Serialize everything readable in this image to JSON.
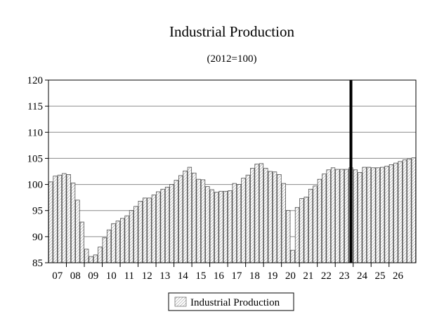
{
  "chart_data": {
    "type": "bar",
    "title": "Industrial Production",
    "subtitle": "(2012=100)",
    "xlabel": "",
    "ylabel": "",
    "ylim": [
      85,
      120
    ],
    "yticks": [
      85,
      90,
      95,
      100,
      105,
      110,
      115,
      120
    ],
    "grid": true,
    "legend_position": "bottom-center",
    "forecast_divider_year": "24",
    "x_labels": [
      "07",
      "08",
      "09",
      "10",
      "11",
      "12",
      "13",
      "14",
      "15",
      "16",
      "17",
      "18",
      "19",
      "20",
      "21",
      "22",
      "23",
      "24",
      "25",
      "26"
    ],
    "series": [
      {
        "name": "Industrial Production",
        "values": [
          100.5,
          101.6,
          101.8,
          102.1,
          101.9,
          100.3,
          97.0,
          92.8,
          87.6,
          86.2,
          86.5,
          88.0,
          89.8,
          91.3,
          92.5,
          93.0,
          93.5,
          94.0,
          95.0,
          95.8,
          96.8,
          97.4,
          97.4,
          98.0,
          98.6,
          99.1,
          99.5,
          100.0,
          100.8,
          101.7,
          102.6,
          103.3,
          102.2,
          101.0,
          100.9,
          99.6,
          99.0,
          98.5,
          98.7,
          98.7,
          98.8,
          100.2,
          100.0,
          101.2,
          101.8,
          103.1,
          103.9,
          104.0,
          103.1,
          102.5,
          102.4,
          101.9,
          100.2,
          95.0,
          87.4,
          95.6,
          97.3,
          97.6,
          99.1,
          99.7,
          101.0,
          102.0,
          102.8,
          103.2,
          102.9,
          102.9,
          102.9,
          103.2,
          102.8,
          102.3,
          103.3,
          103.3,
          103.2,
          103.2,
          103.3,
          103.5,
          103.8,
          104.1,
          104.4,
          104.7,
          104.9,
          105.1
        ]
      }
    ]
  }
}
